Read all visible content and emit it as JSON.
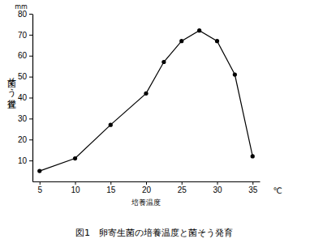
{
  "chart_data": {
    "type": "line",
    "title": "図1　卵寄生菌の培養温度と菌そう発育",
    "x_label": "培養温度",
    "x_unit": "℃",
    "y_label": "菌そう直径",
    "y_unit": "mm",
    "x": [
      5,
      10,
      15,
      20,
      22.5,
      25,
      27.5,
      30,
      32.5,
      35
    ],
    "values": [
      5,
      11,
      27,
      42,
      57,
      67,
      72,
      67,
      51,
      12
    ],
    "color": "#000000",
    "marker": "circle",
    "line_style": "solid",
    "grid": false,
    "xlim": [
      4,
      36
    ],
    "xticks": [
      5,
      10,
      15,
      20,
      25,
      30,
      35
    ],
    "ylim": [
      0,
      80
    ],
    "yticks": [
      10,
      20,
      30,
      40,
      50,
      60,
      70,
      80
    ]
  }
}
